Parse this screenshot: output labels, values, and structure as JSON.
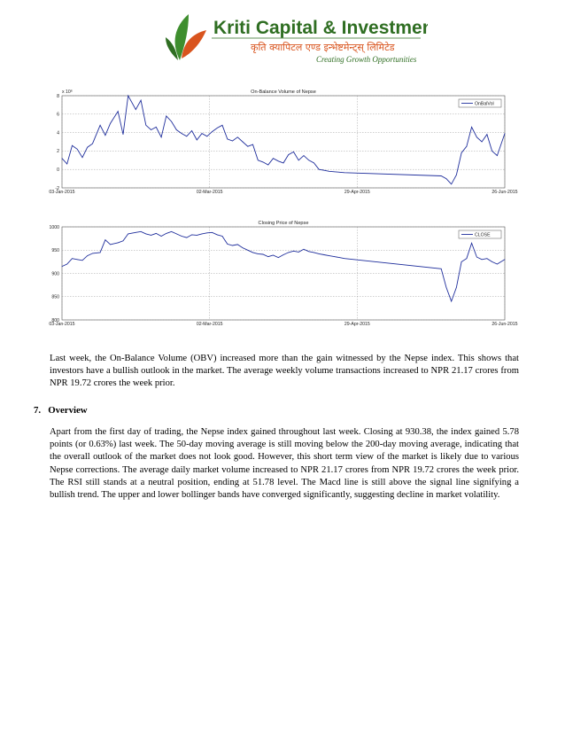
{
  "logo": {
    "company_name": "Kriti Capital & Investments Ltd.",
    "company_name_devanagari": "कृति क्यापिटल एण्ड इन्भेष्टमेन्ट्स् लिमिटेड",
    "tagline": "Creating Growth Opportunities",
    "colors": {
      "green": "#3e8e2e",
      "orange": "#d9541e",
      "dark_green": "#2f6e22"
    }
  },
  "charts": {
    "obv": {
      "title": "On-Balance Volume of Nepse",
      "legend": "OnBalVol",
      "exponent": "x 10⁶",
      "color": "#1f2e9c"
    },
    "close": {
      "title": "Closing Price of Nepse",
      "legend": "CLOSE",
      "color": "#1f2e9c"
    }
  },
  "chart_data": [
    {
      "type": "line",
      "title": "On-Balance Volume of Nepse",
      "ylabel": "x 10^6",
      "ylim": [
        -2,
        8
      ],
      "yticks": [
        "-2",
        "0",
        "2",
        "4",
        "6",
        "8"
      ],
      "xticks": [
        "03-Jan-2015",
        "02-Mar-2015",
        "29-Apr-2015",
        "26-Jun-2015"
      ],
      "legend_position": "top-right",
      "grid": true,
      "series": [
        {
          "name": "OnBalVol",
          "x": [
            "03-Jan-2015",
            "05-Jan-2015",
            "07-Jan-2015",
            "09-Jan-2015",
            "11-Jan-2015",
            "13-Jan-2015",
            "15-Jan-2015",
            "18-Jan-2015",
            "20-Jan-2015",
            "22-Jan-2015",
            "25-Jan-2015",
            "27-Jan-2015",
            "29-Jan-2015",
            "01-Feb-2015",
            "03-Feb-2015",
            "05-Feb-2015",
            "07-Feb-2015",
            "09-Feb-2015",
            "11-Feb-2015",
            "13-Feb-2015",
            "15-Feb-2015",
            "17-Feb-2015",
            "19-Feb-2015",
            "21-Feb-2015",
            "23-Feb-2015",
            "25-Feb-2015",
            "27-Feb-2015",
            "01-Mar-2015",
            "03-Mar-2015",
            "05-Mar-2015",
            "07-Mar-2015",
            "09-Mar-2015",
            "11-Mar-2015",
            "13-Mar-2015",
            "15-Mar-2015",
            "17-Mar-2015",
            "19-Mar-2015",
            "21-Mar-2015",
            "23-Mar-2015",
            "25-Mar-2015",
            "27-Mar-2015",
            "29-Mar-2015",
            "31-Mar-2015",
            "02-Apr-2015",
            "04-Apr-2015",
            "06-Apr-2015",
            "08-Apr-2015",
            "10-Apr-2015",
            "12-Apr-2015",
            "14-Apr-2015",
            "16-Apr-2015",
            "18-Apr-2015",
            "20-Apr-2015",
            "22-Apr-2015",
            "24-Apr-2015",
            "01-Jun-2015",
            "03-Jun-2015",
            "05-Jun-2015",
            "07-Jun-2015",
            "09-Jun-2015",
            "11-Jun-2015",
            "13-Jun-2015",
            "15-Jun-2015",
            "17-Jun-2015",
            "19-Jun-2015",
            "21-Jun-2015",
            "23-Jun-2015",
            "26-Jun-2015"
          ],
          "values": [
            1.2,
            0.6,
            2.6,
            2.2,
            1.3,
            2.4,
            2.8,
            4.8,
            3.7,
            5.0,
            6.3,
            3.8,
            8.0,
            6.5,
            7.5,
            4.8,
            4.3,
            4.6,
            3.5,
            5.8,
            5.2,
            4.3,
            3.9,
            3.6,
            4.2,
            3.2,
            3.9,
            3.6,
            4.1,
            4.5,
            4.8,
            3.3,
            3.1,
            3.5,
            3.0,
            2.5,
            2.7,
            1.0,
            0.8,
            0.5,
            1.2,
            0.9,
            0.7,
            1.6,
            1.9,
            1.0,
            1.5,
            1.0,
            0.7,
            0.0,
            -0.1,
            -0.2,
            -0.25,
            -0.3,
            -0.35,
            -0.7,
            -1.0,
            -1.6,
            -0.6,
            1.8,
            2.5,
            4.6,
            3.5,
            3.0,
            3.8,
            2.0,
            1.5,
            3.9
          ]
        }
      ]
    },
    {
      "type": "line",
      "title": "Closing Price of Nepse",
      "ylim": [
        800,
        1000
      ],
      "yticks": [
        "800",
        "850",
        "900",
        "950",
        "1000"
      ],
      "xticks": [
        "03-Jan-2015",
        "02-Mar-2015",
        "29-Apr-2015",
        "26-Jun-2015"
      ],
      "legend_position": "top-right",
      "grid": true,
      "series": [
        {
          "name": "CLOSE",
          "x": [
            "03-Jan-2015",
            "05-Jan-2015",
            "07-Jan-2015",
            "09-Jan-2015",
            "11-Jan-2015",
            "13-Jan-2015",
            "15-Jan-2015",
            "18-Jan-2015",
            "20-Jan-2015",
            "22-Jan-2015",
            "25-Jan-2015",
            "27-Jan-2015",
            "29-Jan-2015",
            "01-Feb-2015",
            "03-Feb-2015",
            "05-Feb-2015",
            "07-Feb-2015",
            "09-Feb-2015",
            "11-Feb-2015",
            "13-Feb-2015",
            "15-Feb-2015",
            "17-Feb-2015",
            "19-Feb-2015",
            "21-Feb-2015",
            "23-Feb-2015",
            "25-Feb-2015",
            "27-Feb-2015",
            "01-Mar-2015",
            "03-Mar-2015",
            "05-Mar-2015",
            "07-Mar-2015",
            "09-Mar-2015",
            "11-Mar-2015",
            "13-Mar-2015",
            "15-Mar-2015",
            "17-Mar-2015",
            "19-Mar-2015",
            "21-Mar-2015",
            "23-Mar-2015",
            "25-Mar-2015",
            "27-Mar-2015",
            "29-Mar-2015",
            "31-Mar-2015",
            "02-Apr-2015",
            "04-Apr-2015",
            "06-Apr-2015",
            "08-Apr-2015",
            "10-Apr-2015",
            "12-Apr-2015",
            "14-Apr-2015",
            "16-Apr-2015",
            "18-Apr-2015",
            "20-Apr-2015",
            "22-Apr-2015",
            "24-Apr-2015",
            "01-Jun-2015",
            "03-Jun-2015",
            "05-Jun-2015",
            "07-Jun-2015",
            "09-Jun-2015",
            "11-Jun-2015",
            "13-Jun-2015",
            "15-Jun-2015",
            "17-Jun-2015",
            "19-Jun-2015",
            "21-Jun-2015",
            "23-Jun-2015",
            "26-Jun-2015"
          ],
          "values": [
            915,
            920,
            932,
            930,
            928,
            938,
            943,
            945,
            972,
            962,
            966,
            970,
            985,
            988,
            990,
            985,
            982,
            986,
            980,
            986,
            990,
            985,
            980,
            977,
            983,
            982,
            985,
            987,
            988,
            983,
            980,
            963,
            960,
            962,
            955,
            950,
            945,
            942,
            941,
            936,
            939,
            934,
            940,
            945,
            948,
            946,
            952,
            947,
            945,
            942,
            940,
            938,
            936,
            934,
            932,
            910,
            870,
            840,
            870,
            925,
            932,
            965,
            935,
            930,
            932,
            925,
            920,
            930
          ]
        }
      ]
    }
  ],
  "text": {
    "para1": "Last week, the On-Balance Volume (OBV) increased more than the gain witnessed by the Nepse index. This shows that investors have a bullish outlook in the market. The average weekly volume transactions increased to NPR 21.17 crores from NPR 19.72 crores the week prior.",
    "section_number": "7.",
    "section_title": "Overview",
    "para2": "Apart from the first day of trading, the Nepse index gained throughout last week. Closing at 930.38, the index gained 5.78 points (or 0.63%) last week. The 50-day moving average is still moving below the 200-day moving average, indicating that the overall outlook of the market does not look good. However, this short term view of the market is likely due to various Nepse corrections. The average daily market volume increased to NPR 21.17 crores from NPR 19.72 crores the week prior. The RSI still stands at a neutral position, ending at 51.78 level. The Macd line is still above the signal line signifying a bullish trend. The upper and lower bollinger bands have converged significantly, suggesting decline in market volatility."
  }
}
